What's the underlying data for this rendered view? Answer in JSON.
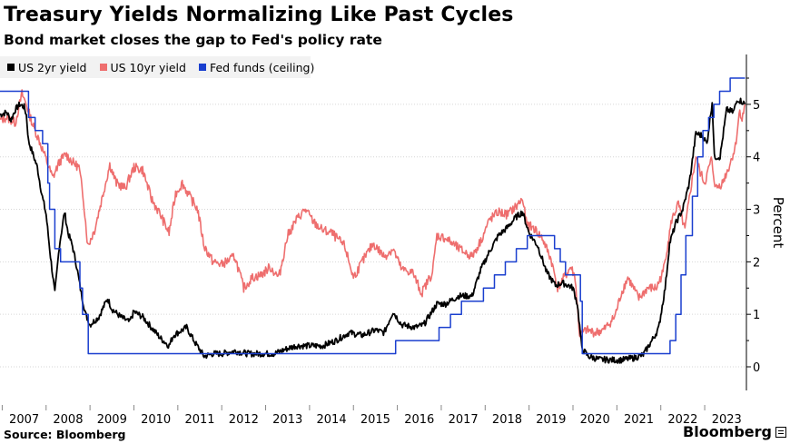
{
  "title": "Treasury Yields Normalizing Like Past Cycles",
  "subtitle": "Bond market closes the gap to Fed's policy rate",
  "source": "Source: Bloomberg",
  "brand": "Bloomberg",
  "colors": {
    "us2y": "#000000",
    "us10y": "#ee6e6e",
    "fedfunds": "#1a3fcf"
  },
  "chart_data": {
    "type": "line",
    "ylabel": "Percent",
    "ylim": [
      -0.45,
      5.95
    ],
    "xlim": [
      2006.95,
      2023.95
    ],
    "y_ticks": [
      0,
      1,
      2,
      3,
      4,
      5
    ],
    "x_ticks": [
      "2007",
      "2008",
      "2009",
      "2010",
      "2011",
      "2012",
      "2013",
      "2014",
      "2015",
      "2016",
      "2017",
      "2018",
      "2019",
      "2020",
      "2021",
      "2022",
      "2023"
    ],
    "legend_position": "top-left",
    "series": [
      {
        "name": "US 2yr yield",
        "color": "#000000",
        "points": [
          [
            2006.95,
            4.8
          ],
          [
            2007.1,
            4.85
          ],
          [
            2007.2,
            4.7
          ],
          [
            2007.3,
            4.9
          ],
          [
            2007.4,
            5.0
          ],
          [
            2007.5,
            4.95
          ],
          [
            2007.55,
            4.8
          ],
          [
            2007.6,
            4.3
          ],
          [
            2007.7,
            4.05
          ],
          [
            2007.8,
            3.8
          ],
          [
            2007.9,
            3.3
          ],
          [
            2008.0,
            2.9
          ],
          [
            2008.1,
            2.1
          ],
          [
            2008.2,
            1.4
          ],
          [
            2008.3,
            2.3
          ],
          [
            2008.42,
            2.95
          ],
          [
            2008.5,
            2.55
          ],
          [
            2008.6,
            2.3
          ],
          [
            2008.7,
            1.9
          ],
          [
            2008.8,
            1.4
          ],
          [
            2008.9,
            1.0
          ],
          [
            2009.0,
            0.8
          ],
          [
            2009.2,
            0.95
          ],
          [
            2009.4,
            1.3
          ],
          [
            2009.5,
            1.1
          ],
          [
            2009.7,
            0.95
          ],
          [
            2009.9,
            0.85
          ],
          [
            2010.0,
            1.05
          ],
          [
            2010.2,
            0.95
          ],
          [
            2010.4,
            0.75
          ],
          [
            2010.6,
            0.55
          ],
          [
            2010.8,
            0.4
          ],
          [
            2010.9,
            0.6
          ],
          [
            2011.0,
            0.65
          ],
          [
            2011.2,
            0.75
          ],
          [
            2011.4,
            0.45
          ],
          [
            2011.6,
            0.2
          ],
          [
            2011.8,
            0.25
          ],
          [
            2012.0,
            0.25
          ],
          [
            2012.3,
            0.3
          ],
          [
            2012.6,
            0.25
          ],
          [
            2012.9,
            0.25
          ],
          [
            2013.2,
            0.25
          ],
          [
            2013.5,
            0.35
          ],
          [
            2013.7,
            0.4
          ],
          [
            2014.0,
            0.4
          ],
          [
            2014.3,
            0.4
          ],
          [
            2014.6,
            0.5
          ],
          [
            2014.9,
            0.65
          ],
          [
            2015.2,
            0.6
          ],
          [
            2015.5,
            0.7
          ],
          [
            2015.7,
            0.65
          ],
          [
            2015.9,
            1.05
          ],
          [
            2016.1,
            0.8
          ],
          [
            2016.4,
            0.75
          ],
          [
            2016.6,
            0.8
          ],
          [
            2016.9,
            1.2
          ],
          [
            2017.1,
            1.2
          ],
          [
            2017.4,
            1.35
          ],
          [
            2017.7,
            1.35
          ],
          [
            2017.9,
            1.85
          ],
          [
            2018.1,
            2.2
          ],
          [
            2018.3,
            2.5
          ],
          [
            2018.5,
            2.65
          ],
          [
            2018.7,
            2.85
          ],
          [
            2018.85,
            2.95
          ],
          [
            2019.0,
            2.55
          ],
          [
            2019.2,
            2.3
          ],
          [
            2019.4,
            1.8
          ],
          [
            2019.6,
            1.55
          ],
          [
            2019.75,
            1.6
          ],
          [
            2019.9,
            1.55
          ],
          [
            2020.0,
            1.5
          ],
          [
            2020.1,
            1.2
          ],
          [
            2020.2,
            0.35
          ],
          [
            2020.35,
            0.2
          ],
          [
            2020.6,
            0.14
          ],
          [
            2020.9,
            0.13
          ],
          [
            2021.1,
            0.13
          ],
          [
            2021.4,
            0.17
          ],
          [
            2021.6,
            0.23
          ],
          [
            2021.8,
            0.5
          ],
          [
            2021.95,
            0.73
          ],
          [
            2022.1,
            1.5
          ],
          [
            2022.2,
            2.35
          ],
          [
            2022.35,
            2.75
          ],
          [
            2022.5,
            3.0
          ],
          [
            2022.65,
            3.5
          ],
          [
            2022.8,
            4.45
          ],
          [
            2022.95,
            4.4
          ],
          [
            2023.05,
            4.25
          ],
          [
            2023.17,
            5.05
          ],
          [
            2023.22,
            4.0
          ],
          [
            2023.35,
            4.0
          ],
          [
            2023.5,
            4.9
          ],
          [
            2023.65,
            4.85
          ],
          [
            2023.75,
            5.1
          ],
          [
            2023.85,
            5.05
          ],
          [
            2023.92,
            5.0
          ]
        ]
      },
      {
        "name": "US 10yr yield",
        "color": "#ee6e6e",
        "points": [
          [
            2006.95,
            4.7
          ],
          [
            2007.1,
            4.75
          ],
          [
            2007.3,
            4.65
          ],
          [
            2007.45,
            5.2
          ],
          [
            2007.55,
            5.0
          ],
          [
            2007.7,
            4.6
          ],
          [
            2007.85,
            4.3
          ],
          [
            2008.0,
            3.95
          ],
          [
            2008.15,
            3.6
          ],
          [
            2008.3,
            3.9
          ],
          [
            2008.45,
            4.05
          ],
          [
            2008.6,
            3.9
          ],
          [
            2008.75,
            3.8
          ],
          [
            2008.85,
            3.2
          ],
          [
            2008.95,
            2.3
          ],
          [
            2009.1,
            2.6
          ],
          [
            2009.3,
            3.3
          ],
          [
            2009.45,
            3.85
          ],
          [
            2009.6,
            3.5
          ],
          [
            2009.8,
            3.4
          ],
          [
            2010.0,
            3.8
          ],
          [
            2010.2,
            3.75
          ],
          [
            2010.4,
            3.2
          ],
          [
            2010.6,
            2.9
          ],
          [
            2010.8,
            2.55
          ],
          [
            2010.95,
            3.3
          ],
          [
            2011.1,
            3.5
          ],
          [
            2011.3,
            3.2
          ],
          [
            2011.45,
            3.0
          ],
          [
            2011.6,
            2.3
          ],
          [
            2011.8,
            2.0
          ],
          [
            2012.0,
            1.95
          ],
          [
            2012.3,
            2.1
          ],
          [
            2012.5,
            1.5
          ],
          [
            2012.7,
            1.7
          ],
          [
            2012.9,
            1.75
          ],
          [
            2013.1,
            1.9
          ],
          [
            2013.3,
            1.7
          ],
          [
            2013.5,
            2.5
          ],
          [
            2013.7,
            2.8
          ],
          [
            2013.9,
            3.0
          ],
          [
            2014.1,
            2.75
          ],
          [
            2014.3,
            2.6
          ],
          [
            2014.5,
            2.55
          ],
          [
            2014.8,
            2.3
          ],
          [
            2015.0,
            1.7
          ],
          [
            2015.2,
            2.0
          ],
          [
            2015.45,
            2.35
          ],
          [
            2015.7,
            2.1
          ],
          [
            2015.9,
            2.25
          ],
          [
            2016.1,
            1.85
          ],
          [
            2016.35,
            1.8
          ],
          [
            2016.55,
            1.4
          ],
          [
            2016.8,
            1.8
          ],
          [
            2016.9,
            2.5
          ],
          [
            2017.1,
            2.45
          ],
          [
            2017.4,
            2.25
          ],
          [
            2017.7,
            2.1
          ],
          [
            2017.9,
            2.4
          ],
          [
            2018.1,
            2.8
          ],
          [
            2018.3,
            2.95
          ],
          [
            2018.5,
            2.9
          ],
          [
            2018.7,
            3.05
          ],
          [
            2018.85,
            3.2
          ],
          [
            2018.95,
            2.7
          ],
          [
            2019.1,
            2.65
          ],
          [
            2019.3,
            2.45
          ],
          [
            2019.5,
            2.05
          ],
          [
            2019.65,
            1.5
          ],
          [
            2019.8,
            1.7
          ],
          [
            2019.95,
            1.9
          ],
          [
            2020.05,
            1.7
          ],
          [
            2020.15,
            0.6
          ],
          [
            2020.3,
            0.7
          ],
          [
            2020.5,
            0.65
          ],
          [
            2020.7,
            0.7
          ],
          [
            2020.95,
            0.95
          ],
          [
            2021.1,
            1.4
          ],
          [
            2021.25,
            1.7
          ],
          [
            2021.5,
            1.3
          ],
          [
            2021.7,
            1.5
          ],
          [
            2021.9,
            1.5
          ],
          [
            2022.05,
            1.8
          ],
          [
            2022.25,
            2.8
          ],
          [
            2022.4,
            3.1
          ],
          [
            2022.55,
            2.6
          ],
          [
            2022.7,
            3.5
          ],
          [
            2022.8,
            4.0
          ],
          [
            2022.9,
            3.7
          ],
          [
            2023.0,
            3.5
          ],
          [
            2023.15,
            3.95
          ],
          [
            2023.25,
            3.4
          ],
          [
            2023.4,
            3.5
          ],
          [
            2023.55,
            3.8
          ],
          [
            2023.7,
            4.2
          ],
          [
            2023.8,
            4.9
          ],
          [
            2023.85,
            4.7
          ],
          [
            2023.92,
            5.0
          ]
        ]
      },
      {
        "name": "Fed funds (ceiling)",
        "color": "#1a3fcf",
        "points": [
          [
            2006.95,
            5.25
          ],
          [
            2007.6,
            5.25
          ],
          [
            2007.6,
            4.75
          ],
          [
            2007.75,
            4.75
          ],
          [
            2007.75,
            4.5
          ],
          [
            2007.92,
            4.5
          ],
          [
            2007.92,
            4.25
          ],
          [
            2008.04,
            4.25
          ],
          [
            2008.04,
            3.5
          ],
          [
            2008.08,
            3.5
          ],
          [
            2008.08,
            3.0
          ],
          [
            2008.2,
            3.0
          ],
          [
            2008.2,
            2.25
          ],
          [
            2008.33,
            2.25
          ],
          [
            2008.33,
            2.0
          ],
          [
            2008.77,
            2.0
          ],
          [
            2008.77,
            1.5
          ],
          [
            2008.83,
            1.5
          ],
          [
            2008.83,
            1.0
          ],
          [
            2008.96,
            1.0
          ],
          [
            2008.96,
            0.25
          ],
          [
            2015.96,
            0.25
          ],
          [
            2015.96,
            0.5
          ],
          [
            2016.95,
            0.5
          ],
          [
            2016.95,
            0.75
          ],
          [
            2017.21,
            0.75
          ],
          [
            2017.21,
            1.0
          ],
          [
            2017.46,
            1.0
          ],
          [
            2017.46,
            1.25
          ],
          [
            2017.96,
            1.25
          ],
          [
            2017.96,
            1.5
          ],
          [
            2018.21,
            1.5
          ],
          [
            2018.21,
            1.75
          ],
          [
            2018.46,
            1.75
          ],
          [
            2018.46,
            2.0
          ],
          [
            2018.71,
            2.0
          ],
          [
            2018.71,
            2.25
          ],
          [
            2018.96,
            2.25
          ],
          [
            2018.96,
            2.5
          ],
          [
            2019.58,
            2.5
          ],
          [
            2019.58,
            2.25
          ],
          [
            2019.71,
            2.25
          ],
          [
            2019.71,
            2.0
          ],
          [
            2019.83,
            2.0
          ],
          [
            2019.83,
            1.75
          ],
          [
            2020.17,
            1.75
          ],
          [
            2020.17,
            1.25
          ],
          [
            2020.21,
            1.25
          ],
          [
            2020.21,
            0.25
          ],
          [
            2022.21,
            0.25
          ],
          [
            2022.21,
            0.5
          ],
          [
            2022.34,
            0.5
          ],
          [
            2022.34,
            1.0
          ],
          [
            2022.46,
            1.0
          ],
          [
            2022.46,
            1.75
          ],
          [
            2022.57,
            1.75
          ],
          [
            2022.57,
            2.5
          ],
          [
            2022.72,
            2.5
          ],
          [
            2022.72,
            3.25
          ],
          [
            2022.84,
            3.25
          ],
          [
            2022.84,
            4.0
          ],
          [
            2022.96,
            4.0
          ],
          [
            2022.96,
            4.5
          ],
          [
            2023.09,
            4.5
          ],
          [
            2023.09,
            4.75
          ],
          [
            2023.21,
            4.75
          ],
          [
            2023.21,
            5.0
          ],
          [
            2023.34,
            5.0
          ],
          [
            2023.34,
            5.25
          ],
          [
            2023.58,
            5.25
          ],
          [
            2023.58,
            5.5
          ],
          [
            2023.92,
            5.5
          ]
        ]
      }
    ]
  }
}
